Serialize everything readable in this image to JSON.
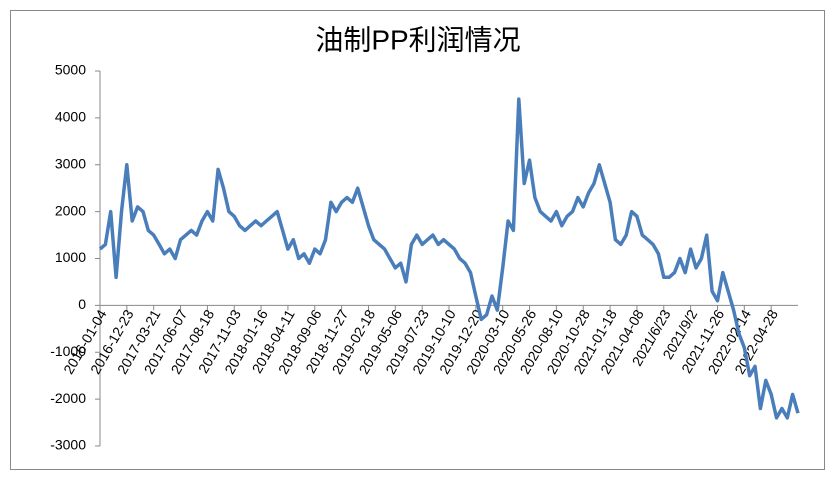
{
  "chart_data": {
    "type": "line",
    "title": "油制PP利润情况",
    "categories": [
      "2016-01-04",
      null,
      null,
      null,
      null,
      "2016-12-23",
      null,
      null,
      null,
      null,
      "2017-03-21",
      null,
      null,
      null,
      null,
      "2017-06-07",
      null,
      null,
      null,
      null,
      "2017-08-18",
      null,
      null,
      null,
      null,
      "2017-11-03",
      null,
      null,
      null,
      null,
      "2018-01-16",
      null,
      null,
      null,
      null,
      "2018-04-11",
      null,
      null,
      null,
      null,
      "2018-09-06",
      null,
      null,
      null,
      null,
      "2018-11-27",
      null,
      null,
      null,
      null,
      "2019-02-18",
      null,
      null,
      null,
      null,
      "2019-05-06",
      null,
      null,
      null,
      null,
      "2019-07-23",
      null,
      null,
      null,
      null,
      "2019-10-10",
      null,
      null,
      null,
      null,
      "2019-12-20",
      null,
      null,
      null,
      null,
      "2020-03-10",
      null,
      null,
      null,
      null,
      "2020-05-26",
      null,
      null,
      null,
      null,
      "2020-08-10",
      null,
      null,
      null,
      null,
      "2020-10-28",
      null,
      null,
      null,
      null,
      "2021-01-18",
      null,
      null,
      null,
      null,
      "2021-04-08",
      null,
      null,
      null,
      null,
      "2021/6/23",
      null,
      null,
      null,
      null,
      "2021/9/2",
      null,
      null,
      null,
      null,
      "2021-11-26",
      null,
      null,
      null,
      null,
      "2022-02-14",
      null,
      null,
      null,
      null,
      "2022-04-28",
      null,
      null,
      null,
      null,
      null
    ],
    "series": [
      {
        "name": "油制PP利润",
        "color": "#4a7ebb",
        "values": [
          1200,
          1300,
          2000,
          600,
          2000,
          3000,
          1800,
          2100,
          2000,
          1600,
          1500,
          1300,
          1100,
          1200,
          1000,
          1400,
          1500,
          1600,
          1500,
          1800,
          2000,
          1800,
          2900,
          2500,
          2000,
          1900,
          1700,
          1600,
          1700,
          1800,
          1700,
          1800,
          1900,
          2000,
          1600,
          1200,
          1400,
          1000,
          1100,
          900,
          1200,
          1100,
          1400,
          2200,
          2000,
          2200,
          2300,
          2200,
          2500,
          2100,
          1700,
          1400,
          1300,
          1200,
          1000,
          800,
          900,
          500,
          1300,
          1500,
          1300,
          1400,
          1500,
          1300,
          1400,
          1300,
          1200,
          1000,
          900,
          700,
          200,
          -300,
          -200,
          200,
          -100,
          800,
          1800,
          1600,
          4400,
          2600,
          3100,
          2300,
          2000,
          1900,
          1800,
          2000,
          1700,
          1900,
          2000,
          2300,
          2100,
          2400,
          2600,
          3000,
          2600,
          2200,
          1400,
          1300,
          1500,
          2000,
          1900,
          1500,
          1400,
          1300,
          1100,
          600,
          600,
          700,
          1000,
          700,
          1200,
          800,
          1000,
          1500,
          300,
          100,
          700,
          300,
          -100,
          -600,
          -900,
          -1500,
          -1300,
          -2200,
          -1600,
          -1900,
          -2400,
          -2200,
          -2400,
          -1900,
          -2300
        ]
      }
    ],
    "ylim": [
      -3000,
      5000
    ],
    "yticks": [
      -3000,
      -2000,
      -1000,
      0,
      1000,
      2000,
      3000,
      4000,
      5000
    ]
  }
}
